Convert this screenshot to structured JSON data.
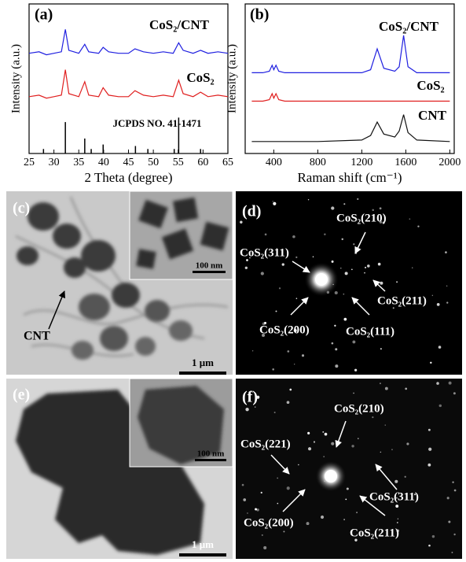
{
  "chart_data": [
    {
      "type": "line",
      "label": "(a)",
      "xlabel": "2 Theta (degree)",
      "ylabel": "Intensity (a.u.)",
      "xlim": [
        25,
        65
      ],
      "ylim": [
        0,
        10
      ],
      "xticks": [
        25,
        30,
        35,
        40,
        45,
        50,
        55,
        60,
        65
      ],
      "series": [
        {
          "name": "CoS₂/CNT",
          "color": "#1f1fe0",
          "style": "line",
          "x": [
            25,
            27,
            28.5,
            30,
            31.5,
            32.3,
            33,
            35,
            36.2,
            37,
            39,
            39.9,
            41,
            43,
            45,
            46.3,
            48,
            50,
            52,
            54,
            55.1,
            56,
            58,
            59.5,
            61,
            63,
            65
          ],
          "values": [
            6.7,
            6.8,
            6.6,
            6.7,
            6.8,
            8.3,
            6.9,
            6.7,
            7.3,
            6.8,
            6.7,
            7.1,
            6.8,
            6.7,
            6.7,
            7.0,
            6.8,
            6.7,
            6.8,
            6.7,
            7.4,
            6.9,
            6.7,
            6.9,
            6.7,
            6.8,
            6.7
          ]
        },
        {
          "name": "CoS₂",
          "color": "#e01f1f",
          "style": "line",
          "x": [
            25,
            27,
            28.5,
            30,
            31.5,
            32.3,
            33,
            35,
            36.2,
            37,
            39,
            39.9,
            41,
            43,
            45,
            46.3,
            48,
            50,
            52,
            54,
            55.1,
            56,
            58,
            59.5,
            61,
            63,
            65
          ],
          "values": [
            3.8,
            3.9,
            3.7,
            3.8,
            3.9,
            5.6,
            4.0,
            3.8,
            4.8,
            3.9,
            3.8,
            4.4,
            3.9,
            3.8,
            3.8,
            4.2,
            3.9,
            3.8,
            3.9,
            3.8,
            4.9,
            4.0,
            3.8,
            4.1,
            3.8,
            3.9,
            3.8
          ]
        },
        {
          "name": "JCPDS NO. 41-1471",
          "color": "#000000",
          "style": "stick",
          "x": [
            27.9,
            32.3,
            36.2,
            37.5,
            39.9,
            46.4,
            48.9,
            54.2,
            55.1,
            59.5
          ],
          "values": [
            0.3,
            2.1,
            1.0,
            0.3,
            0.6,
            0.5,
            0.3,
            0.3,
            2.4,
            0.3
          ]
        }
      ]
    },
    {
      "type": "line",
      "label": "(b)",
      "xlabel": "Raman shift (cm⁻¹)",
      "ylabel": "Intensity (a.u.)",
      "xlim": [
        140,
        2040
      ],
      "ylim": [
        0,
        10
      ],
      "xticks": [
        400,
        800,
        1200,
        1600,
        2000
      ],
      "series": [
        {
          "name": "CoS₂/CNT",
          "color": "#1f1fe0",
          "style": "line",
          "x": [
            200,
            300,
            360,
            385,
            400,
            420,
            445,
            500,
            800,
            1200,
            1280,
            1340,
            1400,
            1500,
            1540,
            1580,
            1620,
            1700,
            2000
          ],
          "values": [
            5.4,
            5.4,
            5.5,
            5.9,
            5.6,
            5.9,
            5.5,
            5.4,
            5.4,
            5.4,
            5.6,
            7.0,
            5.7,
            5.5,
            5.8,
            7.9,
            5.8,
            5.4,
            5.4
          ]
        },
        {
          "name": "CoS₂",
          "color": "#e01f1f",
          "style": "line",
          "x": [
            200,
            300,
            360,
            385,
            400,
            420,
            445,
            500,
            800,
            1200,
            1280,
            1340,
            1400,
            1500,
            1540,
            1580,
            1620,
            1700,
            2000
          ],
          "values": [
            3.5,
            3.5,
            3.6,
            4.0,
            3.7,
            4.0,
            3.6,
            3.5,
            3.5,
            3.5,
            3.5,
            3.5,
            3.5,
            3.5,
            3.5,
            3.5,
            3.5,
            3.5,
            3.5
          ]
        },
        {
          "name": "CNT",
          "color": "#111111",
          "style": "line",
          "x": [
            200,
            300,
            360,
            385,
            400,
            420,
            445,
            500,
            800,
            1200,
            1280,
            1340,
            1400,
            1500,
            1540,
            1580,
            1620,
            1700,
            2000
          ],
          "values": [
            0.8,
            0.8,
            0.8,
            0.8,
            0.8,
            0.8,
            0.8,
            0.8,
            0.8,
            0.9,
            1.2,
            2.1,
            1.3,
            1.1,
            1.5,
            2.6,
            1.4,
            0.9,
            0.8
          ]
        }
      ]
    }
  ],
  "panels": [
    {
      "label": "(c)",
      "annotation": "CNT",
      "scale_bar": "1 μm",
      "inset_scale_bar": "100 nm"
    },
    {
      "label": "(d)",
      "annotations": [
        "CoS₂(210)",
        "CoS₂(311)",
        "CoS₂(211)",
        "CoS₂(200)",
        "CoS₂(111)"
      ]
    },
    {
      "label": "(e)",
      "scale_bar": "1 μm",
      "inset_scale_bar": "100 nm"
    },
    {
      "label": "(f)",
      "annotations": [
        "CoS₂(210)",
        "CoS₂(221)",
        "CoS₂(311)",
        "CoS₂(200)",
        "CoS₂(211)"
      ]
    }
  ]
}
